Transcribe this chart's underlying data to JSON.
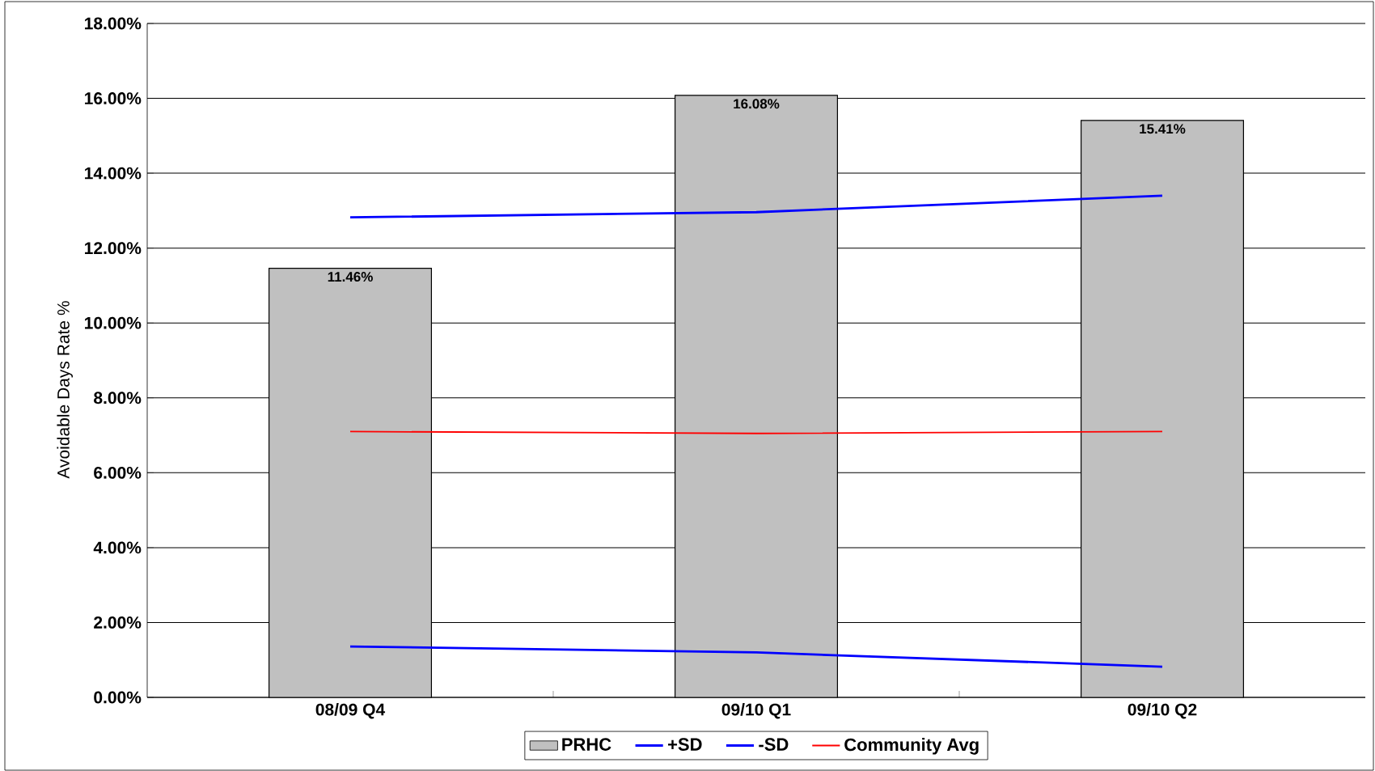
{
  "chart_data": {
    "type": "bar",
    "ylabel": "Avoidable Days Rate %",
    "categories": [
      "08/09 Q4",
      "09/10 Q1",
      "09/10 Q2"
    ],
    "series": [
      {
        "name": "PRHC",
        "color": "#c0c0c0",
        "values": [
          11.46,
          16.08,
          15.41
        ],
        "value_labels": [
          "11.46%",
          "16.08%",
          "15.41%"
        ]
      },
      {
        "name": "+SD",
        "type": "line",
        "color": "#0000ff",
        "values": [
          12.82,
          12.96,
          13.4
        ]
      },
      {
        "name": "-SD",
        "type": "line",
        "color": "#0000ff",
        "values": [
          1.36,
          1.2,
          0.82
        ]
      },
      {
        "name": "Community Avg",
        "type": "line",
        "color": "#ff0000",
        "values": [
          7.1,
          7.05,
          7.1
        ]
      }
    ],
    "ylim": [
      0,
      18
    ],
    "yticks": [
      {
        "value": 0,
        "label": "0.00%"
      },
      {
        "value": 2,
        "label": "2.00%"
      },
      {
        "value": 4,
        "label": "4.00%"
      },
      {
        "value": 6,
        "label": "6.00%"
      },
      {
        "value": 8,
        "label": "8.00%"
      },
      {
        "value": 10,
        "label": "10.00%"
      },
      {
        "value": 12,
        "label": "12.00%"
      },
      {
        "value": 14,
        "label": "14.00%"
      },
      {
        "value": 16,
        "label": "16.00%"
      },
      {
        "value": 18,
        "label": "18.00%"
      }
    ],
    "grid": "y",
    "legend": "bottom",
    "marker": "none"
  }
}
